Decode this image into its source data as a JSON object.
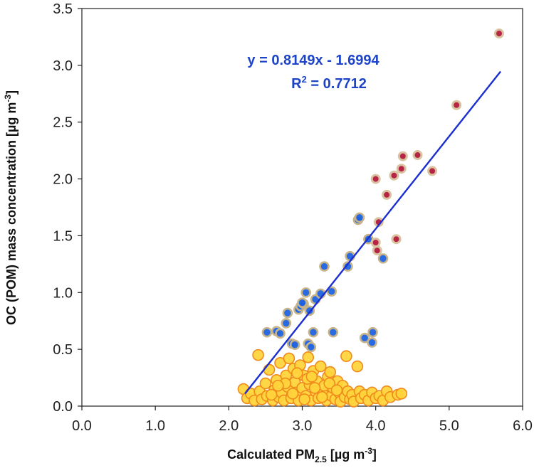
{
  "chart_data": {
    "type": "scatter",
    "title": "",
    "xlabel": "Calculated PM2.5 [µg m-3]",
    "xlabel_parts": {
      "main": "Calculated PM",
      "sub": "2.5",
      "rest": " [µg m",
      "sup": "-3",
      "end": "]"
    },
    "ylabel": "OC (POM) mass concentration [µg m-3]",
    "ylabel_parts": {
      "main": "OC (POM) mass concentration [µg m",
      "sup": "-3",
      "end": "]"
    },
    "xlim": [
      0.0,
      6.0
    ],
    "ylim": [
      0.0,
      3.5
    ],
    "x_ticks": [
      "0.0",
      "1.0",
      "2.0",
      "3.0",
      "4.0",
      "5.0",
      "6.0"
    ],
    "y_ticks": [
      "0.0",
      "0.5",
      "1.0",
      "1.5",
      "2.0",
      "2.5",
      "3.0",
      "3.5"
    ],
    "grid": false,
    "colors": {
      "yellow_fill": "#ffd43b",
      "yellow_stroke": "#f08a1c",
      "blue_fill": "#1f63e0",
      "blue_stroke": "#c8b48a",
      "red_fill": "#b2183c",
      "red_stroke": "#d9c2a0",
      "trendline": "#1b2fd0",
      "annotation": "#1d44c8"
    },
    "trendline": {
      "slope": 0.8149,
      "intercept": -1.6994,
      "x_range": [
        2.22,
        5.7
      ]
    },
    "annotations": {
      "equation": "y = 0.8149x - 1.6994",
      "r2_prefix": "R",
      "r2_sup": "2",
      "r2_value": " = 0.7712"
    },
    "series": [
      {
        "color": "yellow",
        "points": [
          [
            2.2,
            0.15
          ],
          [
            2.25,
            0.07
          ],
          [
            2.3,
            0.11
          ],
          [
            2.35,
            0.05
          ],
          [
            2.4,
            0.45
          ],
          [
            2.42,
            0.13
          ],
          [
            2.45,
            0.06
          ],
          [
            2.5,
            0.2
          ],
          [
            2.52,
            0.09
          ],
          [
            2.55,
            0.32
          ],
          [
            2.6,
            0.05
          ],
          [
            2.62,
            0.14
          ],
          [
            2.65,
            0.23
          ],
          [
            2.68,
            0.08
          ],
          [
            2.7,
            0.38
          ],
          [
            2.72,
            0.12
          ],
          [
            2.75,
            0.05
          ],
          [
            2.78,
            0.27
          ],
          [
            2.8,
            0.17
          ],
          [
            2.82,
            0.42
          ],
          [
            2.85,
            0.07
          ],
          [
            2.88,
            0.33
          ],
          [
            2.9,
            0.21
          ],
          [
            2.92,
            0.12
          ],
          [
            2.95,
            0.05
          ],
          [
            2.97,
            0.36
          ],
          [
            3.0,
            0.16
          ],
          [
            3.02,
            0.27
          ],
          [
            3.05,
            0.09
          ],
          [
            3.08,
            0.43
          ],
          [
            3.1,
            0.19
          ],
          [
            3.12,
            0.05
          ],
          [
            3.15,
            0.31
          ],
          [
            3.18,
            0.13
          ],
          [
            3.2,
            0.22
          ],
          [
            3.22,
            0.07
          ],
          [
            3.25,
            0.35
          ],
          [
            3.28,
            0.11
          ],
          [
            3.3,
            0.18
          ],
          [
            3.33,
            0.05
          ],
          [
            3.35,
            0.26
          ],
          [
            3.38,
            0.3
          ],
          [
            3.4,
            0.09
          ],
          [
            3.42,
            0.16
          ],
          [
            3.45,
            0.06
          ],
          [
            3.48,
            0.22
          ],
          [
            3.5,
            0.12
          ],
          [
            3.52,
            0.04
          ],
          [
            3.55,
            0.18
          ],
          [
            3.58,
            0.08
          ],
          [
            3.6,
            0.44
          ],
          [
            3.62,
            0.13
          ],
          [
            3.65,
            0.06
          ],
          [
            3.68,
            0.1
          ],
          [
            3.7,
            0.04
          ],
          [
            3.75,
            0.35
          ],
          [
            3.78,
            0.13
          ],
          [
            3.8,
            0.07
          ],
          [
            3.85,
            0.1
          ],
          [
            3.9,
            0.05
          ],
          [
            3.95,
            0.12
          ],
          [
            4.0,
            0.07
          ],
          [
            4.05,
            0.09
          ],
          [
            4.1,
            0.05
          ],
          [
            4.15,
            0.13
          ],
          [
            4.2,
            0.08
          ],
          [
            4.3,
            0.1
          ],
          [
            4.35,
            0.11
          ],
          [
            2.58,
            0.1
          ],
          [
            2.77,
            0.2
          ],
          [
            2.93,
            0.29
          ],
          [
            3.07,
            0.24
          ],
          [
            3.17,
            0.16
          ],
          [
            3.27,
            0.08
          ],
          [
            3.37,
            0.2
          ],
          [
            3.47,
            0.14
          ],
          [
            2.67,
            0.18
          ],
          [
            2.87,
            0.11
          ],
          [
            3.03,
            0.06
          ],
          [
            3.13,
            0.26
          ]
        ]
      },
      {
        "color": "blue",
        "points": [
          [
            2.52,
            0.65
          ],
          [
            2.65,
            0.66
          ],
          [
            2.7,
            0.64
          ],
          [
            2.78,
            0.73
          ],
          [
            2.8,
            0.82
          ],
          [
            2.86,
            0.55
          ],
          [
            2.9,
            0.54
          ],
          [
            2.95,
            0.85
          ],
          [
            2.98,
            0.88
          ],
          [
            3.02,
            0.9
          ],
          [
            3.05,
            1.0
          ],
          [
            3.08,
            0.55
          ],
          [
            3.1,
            0.84
          ],
          [
            3.12,
            0.52
          ],
          [
            3.15,
            0.65
          ],
          [
            3.18,
            0.94
          ],
          [
            3.25,
            0.99
          ],
          [
            3.3,
            1.23
          ],
          [
            3.4,
            1.01
          ],
          [
            3.42,
            0.65
          ],
          [
            3.62,
            1.23
          ],
          [
            3.65,
            1.32
          ],
          [
            3.76,
            1.64
          ],
          [
            3.78,
            1.66
          ],
          [
            3.85,
            0.6
          ],
          [
            3.9,
            1.47
          ],
          [
            3.95,
            0.56
          ],
          [
            3.96,
            0.65
          ],
          [
            4.1,
            1.3
          ],
          [
            3.0,
            0.91
          ]
        ]
      },
      {
        "color": "red",
        "points": [
          [
            4.0,
            2.0
          ],
          [
            4.0,
            1.44
          ],
          [
            4.02,
            1.37
          ],
          [
            4.04,
            1.62
          ],
          [
            4.15,
            1.86
          ],
          [
            4.25,
            2.03
          ],
          [
            4.28,
            1.47
          ],
          [
            4.35,
            2.09
          ],
          [
            4.37,
            2.2
          ],
          [
            4.57,
            2.21
          ],
          [
            4.77,
            2.07
          ],
          [
            5.1,
            2.65
          ],
          [
            5.68,
            3.28
          ]
        ]
      }
    ]
  }
}
